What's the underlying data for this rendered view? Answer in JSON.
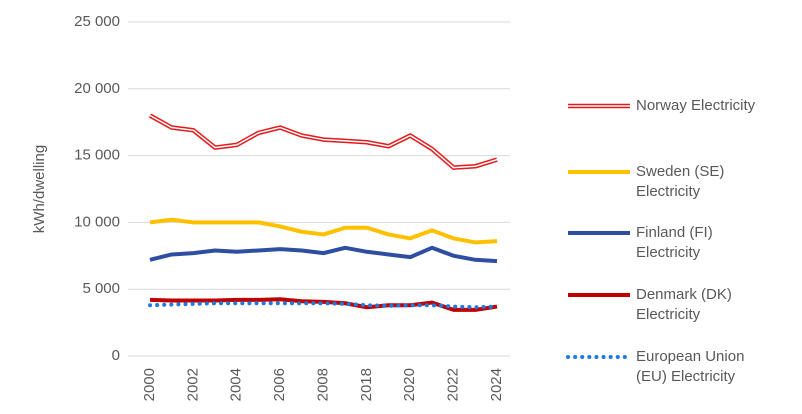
{
  "chart_data": {
    "type": "line",
    "y_label": "kWh/dwelling",
    "categories": [
      "2000",
      null,
      "2002",
      null,
      "2004",
      null,
      "2006",
      null,
      "2008",
      null,
      "2018",
      null,
      "2020",
      null,
      "2022",
      null,
      "2024"
    ],
    "ylim": [
      0,
      25000
    ],
    "yticks": [
      {
        "value": 0,
        "label": "0"
      },
      {
        "value": 5000,
        "label": "5 000"
      },
      {
        "value": 10000,
        "label": "10 000"
      },
      {
        "value": 15000,
        "label": "15 000"
      },
      {
        "value": 20000,
        "label": "20 000"
      },
      {
        "value": 25000,
        "label": "25 000"
      }
    ],
    "grid": true,
    "legend": "right",
    "series": [
      {
        "name": "Norway Electricity",
        "color": "#e31a1c",
        "line_style": "double",
        "values": [
          18000,
          17100,
          16900,
          15600,
          15800,
          16700,
          17100,
          16500,
          16200,
          16100,
          16000,
          15700,
          16500,
          15500,
          14100,
          14200,
          14700
        ]
      },
      {
        "name": "Sweden (SE) Electricity",
        "color": "#ffc000",
        "line_style": "solid",
        "values": [
          10000,
          10200,
          10000,
          10000,
          10000,
          10000,
          9700,
          9300,
          9100,
          9600,
          9600,
          9100,
          8800,
          9400,
          8800,
          8500,
          8600
        ]
      },
      {
        "name": "Finland (FI) Electricity",
        "color": "#2e4ea1",
        "line_style": "solid",
        "values": [
          7200,
          7600,
          7700,
          7900,
          7800,
          7900,
          8000,
          7900,
          7700,
          8100,
          7800,
          7600,
          7400,
          8100,
          7500,
          7200,
          7100
        ]
      },
      {
        "name": "Denmark (DK) Electricity",
        "color": "#c00000",
        "line_style": "solid",
        "values": [
          4200,
          4150,
          4150,
          4150,
          4200,
          4200,
          4250,
          4100,
          4050,
          3950,
          3650,
          3800,
          3800,
          4000,
          3450,
          3450,
          3700
        ]
      },
      {
        "name": "European Union (EU) Electricity",
        "color": "#1f7ae0",
        "line_style": "dotted",
        "values": [
          3800,
          3850,
          3900,
          3950,
          3950,
          3950,
          3950,
          3950,
          3950,
          3900,
          3800,
          3750,
          3800,
          3800,
          3700,
          3650,
          3700
        ]
      }
    ]
  }
}
